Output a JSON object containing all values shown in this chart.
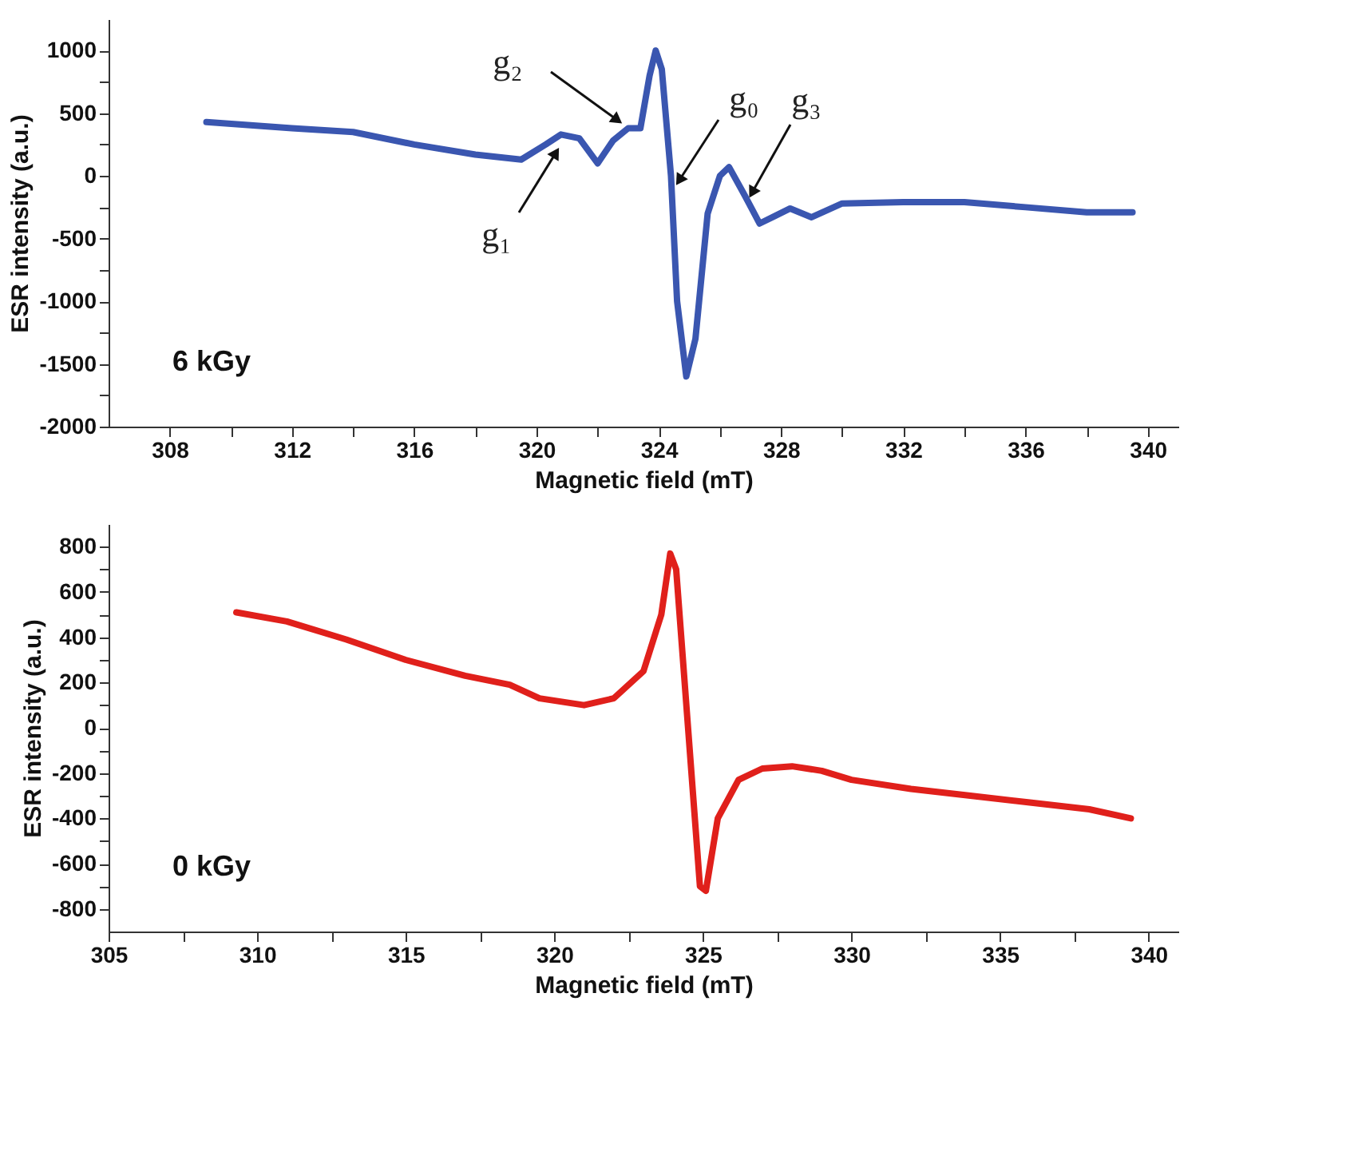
{
  "chart_data": [
    {
      "type": "line",
      "xlabel": "Magnetic field (mT)",
      "ylabel": "ESR intensity (a.u.)",
      "xlim": [
        306,
        341
      ],
      "ylim": [
        -2000,
        1250
      ],
      "xticks": [
        308,
        {
          "value": 310,
          "label": null
        },
        312,
        {
          "value": 314,
          "label": null
        },
        316,
        {
          "value": 318,
          "label": null
        },
        320,
        {
          "value": 322,
          "label": null
        },
        324,
        {
          "value": 326,
          "label": null
        },
        328,
        {
          "value": 330,
          "label": null
        },
        332,
        {
          "value": 334,
          "label": null
        },
        336,
        {
          "value": 338,
          "label": null
        },
        340
      ],
      "yticks": [
        -2000,
        {
          "value": -1750,
          "label": null
        },
        -1500,
        {
          "value": -1250,
          "label": null
        },
        -1000,
        {
          "value": -750,
          "label": null
        },
        -500,
        {
          "value": -250,
          "label": null
        },
        0,
        {
          "value": 250,
          "label": null
        },
        500,
        {
          "value": 750,
          "label": null
        },
        1000
      ],
      "grid": false,
      "legend": false,
      "marker": "none",
      "line_style": "solid",
      "series": [
        {
          "color": "#3a56b0",
          "x": [
            309.2,
            312,
            314,
            316,
            318,
            319.5,
            320.3,
            320.8,
            321.4,
            322,
            322.5,
            323,
            323.4,
            323.7,
            323.9,
            324.1,
            324.4,
            324.6,
            324.9,
            325.2,
            325.6,
            326,
            326.3,
            326.8,
            327.3,
            327.8,
            328.3,
            329,
            330,
            332,
            334,
            336,
            338,
            339.5
          ],
          "values": [
            430,
            380,
            350,
            250,
            170,
            130,
            250,
            330,
            300,
            100,
            280,
            380,
            380,
            800,
            1000,
            850,
            0,
            -1000,
            -1600,
            -1300,
            -300,
            0,
            70,
            -150,
            -380,
            -320,
            -260,
            -330,
            -220,
            -210,
            -210,
            -250,
            -290,
            -290
          ]
        }
      ],
      "annotations": [
        {
          "text": "g₁",
          "x": 320.8,
          "y": 250
        },
        {
          "text": "g₂",
          "x": 322.9,
          "y": 400
        },
        {
          "text": "g₀",
          "x": 324.5,
          "y": -100
        },
        {
          "text": "g₃",
          "x": 326.9,
          "y": -200
        },
        "6 kGy"
      ]
    },
    {
      "type": "line",
      "xlabel": "Magnetic field (mT)",
      "ylabel": "ESR intensity (a.u.)",
      "xlim": [
        305,
        341
      ],
      "ylim": [
        -900,
        900
      ],
      "xticks": [
        305,
        {
          "value": 307.5,
          "label": null
        },
        310,
        {
          "value": 312.5,
          "label": null
        },
        315,
        {
          "value": 317.5,
          "label": null
        },
        320,
        {
          "value": 322.5,
          "label": null
        },
        325,
        {
          "value": 327.5,
          "label": null
        },
        330,
        {
          "value": 332.5,
          "label": null
        },
        335,
        {
          "value": 337.5,
          "label": null
        },
        340
      ],
      "yticks": [
        -800,
        {
          "value": -700,
          "label": null
        },
        -600,
        {
          "value": -500,
          "label": null
        },
        -400,
        {
          "value": -300,
          "label": null
        },
        -200,
        {
          "value": -100,
          "label": null
        },
        0,
        {
          "value": 100,
          "label": null
        },
        200,
        {
          "value": 300,
          "label": null
        },
        400,
        {
          "value": 500,
          "label": null
        },
        600,
        {
          "value": 700,
          "label": null
        },
        800
      ],
      "grid": false,
      "legend": false,
      "marker": "none",
      "line_style": "solid",
      "series": [
        {
          "color": "#e0201b",
          "x": [
            309.3,
            311,
            313,
            315,
            317,
            318.5,
            319.5,
            321,
            322,
            323,
            323.6,
            323.9,
            324.1,
            324.5,
            324.9,
            325.1,
            325.5,
            326.2,
            327,
            328,
            329,
            330,
            332,
            334,
            336,
            338,
            339.4
          ],
          "values": [
            510,
            470,
            390,
            300,
            230,
            190,
            130,
            100,
            130,
            250,
            500,
            770,
            700,
            0,
            -700,
            -720,
            -400,
            -230,
            -180,
            -170,
            -190,
            -230,
            -270,
            -300,
            -330,
            -360,
            -400
          ]
        }
      ],
      "annotations": [
        "0 kGy"
      ]
    }
  ]
}
